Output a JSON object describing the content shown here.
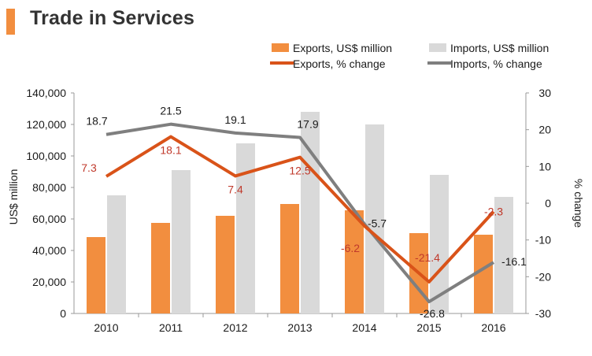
{
  "title": "Trade in Services",
  "colors": {
    "accent": "#F28E3F",
    "exports_bar": "#F28E3F",
    "imports_bar": "#D9D9D9",
    "exports_line": "#D95319",
    "imports_line": "#7F7F7F",
    "exports_label": "#C0392B",
    "text": "#1a1a1a",
    "axis": "#999999"
  },
  "chart_data": {
    "type": "bar+line",
    "categories": [
      "2010",
      "2011",
      "2012",
      "2013",
      "2014",
      "2015",
      "2016"
    ],
    "series": [
      {
        "name": "Exports, US$ million",
        "kind": "bar",
        "axis": "left",
        "values": [
          48500,
          57500,
          62000,
          69500,
          65500,
          51000,
          50000
        ]
      },
      {
        "name": "Imports, US$ million",
        "kind": "bar",
        "axis": "left",
        "values": [
          75000,
          91000,
          108000,
          128000,
          120000,
          88000,
          74000
        ]
      },
      {
        "name": "Exports, % change",
        "kind": "line",
        "axis": "right",
        "values": [
          7.3,
          18.1,
          7.4,
          12.5,
          -6.2,
          -21.4,
          -2.3
        ],
        "labels": [
          "7.3",
          "18.1",
          "7.4",
          "12.5",
          "-6.2",
          "-21.4",
          "-2.3"
        ]
      },
      {
        "name": "Imports, % change",
        "kind": "line",
        "axis": "right",
        "values": [
          18.7,
          21.5,
          19.1,
          17.9,
          -5.7,
          -26.8,
          -16.1
        ],
        "labels": [
          "18.7",
          "21.5",
          "19.1",
          "17.9",
          "-5.7",
          "-26.8",
          "-16.1"
        ]
      }
    ],
    "ylabel_left": "US$ million",
    "ylabel_right": "% change",
    "ylim_left": [
      0,
      140000
    ],
    "yticks_left": [
      "0",
      "20,000",
      "40,000",
      "60,000",
      "80,000",
      "100,000",
      "120,000",
      "140,000"
    ],
    "ylim_right": [
      -30,
      30
    ],
    "yticks_right": [
      "-30",
      "-20",
      "-10",
      "0",
      "10",
      "20",
      "30"
    ],
    "legend_position": "top-right",
    "grid": false
  }
}
